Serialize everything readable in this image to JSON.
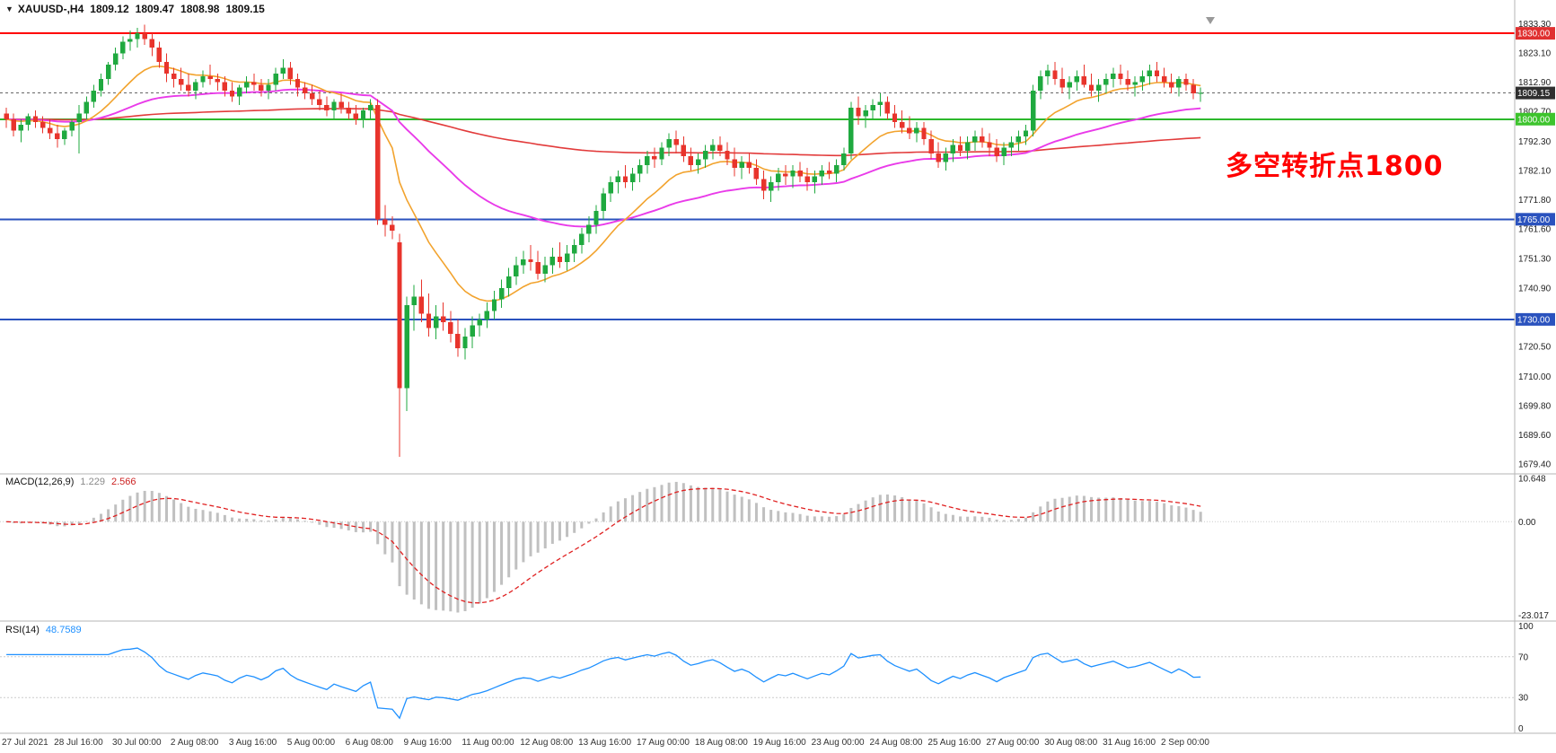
{
  "window": {
    "title_arrow": "▼",
    "symbol_period": "XAUUSD-,H4",
    "ohlc": {
      "open": "1809.12",
      "high": "1809.47",
      "low": "1808.98",
      "close": "1809.15"
    }
  },
  "annotation": {
    "text": "多空转折点1800",
    "color": "#FF0000"
  },
  "chart_data": {
    "type": "candlestick",
    "symbol": "XAUUSD-",
    "timeframe": "H4",
    "title": "XAUUSD-,H4 1809.12 1809.47 1808.98 1809.15",
    "scale": {
      "price_top": 1836,
      "price_bottom": 1676
    },
    "colors": {
      "up": "#1FA93F",
      "down": "#E8342C"
    },
    "current_price": 1809.15,
    "current_price_label": "1809.15",
    "price_axis": {
      "labels": [
        "1833.30",
        "1823.10",
        "1812.90",
        "1802.70",
        "1792.30",
        "1782.10",
        "1771.80",
        "1761.60",
        "1751.30",
        "1740.90",
        "1720.50",
        "1710.00",
        "1699.80",
        "1689.60",
        "1679.40"
      ]
    },
    "hlines": [
      {
        "price": 1830,
        "label": "1830.00",
        "color": "#FF0000",
        "badge_bg": "#E03030",
        "badge_fg": "#FFFFFF",
        "width": 2
      },
      {
        "price": 1800,
        "label": "1800.00",
        "color": "#2DB82D",
        "badge_bg": "#3DC42D",
        "badge_fg": "#FFFFFF",
        "width": 2
      },
      {
        "price": 1765,
        "label": "1765.00",
        "color": "#2A52BE",
        "badge_bg": "#2A52BE",
        "badge_fg": "#FFFFFF",
        "width": 2
      },
      {
        "price": 1730,
        "label": "1730.00",
        "color": "#2A52BE",
        "badge_bg": "#2A52BE",
        "badge_fg": "#FFFFFF",
        "width": 2
      }
    ],
    "moving_averages": [
      {
        "name": "fast-ma",
        "period": 13,
        "color": "#F2A32E",
        "width": 1.6
      },
      {
        "name": "mid-ma",
        "period": 48,
        "color": "#E93BE9",
        "width": 1.9
      },
      {
        "name": "slow-ma",
        "period": 220,
        "color": "#E23B3B",
        "width": 1.6
      }
    ],
    "macd": {
      "label": "MACD(12,26,9)",
      "value_main": "1.229",
      "value_signal": "2.566",
      "fast": 12,
      "slow": 26,
      "signal_period": 9,
      "histogram_color": "#C0C0C0",
      "signal_color": "#E02020",
      "axis": [
        "10.648",
        "0.00",
        "-23.017"
      ],
      "range": [
        -24.5,
        11.8
      ]
    },
    "rsi": {
      "label": "RSI(14)",
      "value": "48.7589",
      "period": 14,
      "color": "#1E90FF",
      "levels": [
        30,
        70
      ],
      "axis": [
        "100",
        "70",
        "30",
        "0"
      ]
    },
    "time_axis": {
      "labels": [
        {
          "index": 0,
          "text": "27 Jul 2021"
        },
        {
          "index": 10,
          "text": "28 Jul 16:00"
        },
        {
          "index": 18,
          "text": "30 Jul 00:00"
        },
        {
          "index": 26,
          "text": "2 Aug 08:00"
        },
        {
          "index": 34,
          "text": "3 Aug 16:00"
        },
        {
          "index": 42,
          "text": "5 Aug 00:00"
        },
        {
          "index": 50,
          "text": "6 Aug 08:00"
        },
        {
          "index": 58,
          "text": "9 Aug 16:00"
        },
        {
          "index": 66,
          "text": "11 Aug 00:00"
        },
        {
          "index": 74,
          "text": "12 Aug 08:00"
        },
        {
          "index": 82,
          "text": "13 Aug 16:00"
        },
        {
          "index": 90,
          "text": "17 Aug 00:00"
        },
        {
          "index": 98,
          "text": "18 Aug 08:00"
        },
        {
          "index": 106,
          "text": "19 Aug 16:00"
        },
        {
          "index": 114,
          "text": "23 Aug 00:00"
        },
        {
          "index": 122,
          "text": "24 Aug 08:00"
        },
        {
          "index": 130,
          "text": "25 Aug 16:00"
        },
        {
          "index": 138,
          "text": "27 Aug 00:00"
        },
        {
          "index": 146,
          "text": "30 Aug 08:00"
        },
        {
          "index": 154,
          "text": "31 Aug 16:00"
        },
        {
          "index": 162,
          "text": "2 Sep 00:00"
        }
      ]
    },
    "candles": [
      [
        1802,
        1804,
        1797,
        1800
      ],
      [
        1800,
        1802,
        1794,
        1796
      ],
      [
        1796,
        1800,
        1792,
        1798
      ],
      [
        1798,
        1802,
        1796,
        1801
      ],
      [
        1801,
        1803,
        1797,
        1799
      ],
      [
        1799,
        1801,
        1795,
        1797
      ],
      [
        1797,
        1800,
        1793,
        1795
      ],
      [
        1795,
        1798,
        1790,
        1793
      ],
      [
        1793,
        1797,
        1791,
        1796
      ],
      [
        1796,
        1800,
        1794,
        1799
      ],
      [
        1799,
        1805,
        1788,
        1802
      ],
      [
        1802,
        1808,
        1800,
        1806
      ],
      [
        1806,
        1812,
        1804,
        1810
      ],
      [
        1810,
        1816,
        1808,
        1814
      ],
      [
        1814,
        1820,
        1812,
        1819
      ],
      [
        1819,
        1825,
        1817,
        1823
      ],
      [
        1823,
        1829,
        1821,
        1827
      ],
      [
        1827,
        1831,
        1824,
        1828
      ],
      [
        1828,
        1832,
        1825,
        1830
      ],
      [
        1830,
        1833,
        1826,
        1828
      ],
      [
        1828,
        1830,
        1822,
        1825
      ],
      [
        1825,
        1827,
        1818,
        1820
      ],
      [
        1820,
        1823,
        1813,
        1816
      ],
      [
        1816,
        1818,
        1811,
        1814
      ],
      [
        1814,
        1818,
        1810,
        1812
      ],
      [
        1812,
        1816,
        1808,
        1810
      ],
      [
        1810,
        1814,
        1807,
        1813
      ],
      [
        1813,
        1817,
        1811,
        1815
      ],
      [
        1815,
        1819,
        1812,
        1814
      ],
      [
        1814,
        1816,
        1810,
        1813
      ],
      [
        1813,
        1815,
        1808,
        1810
      ],
      [
        1810,
        1813,
        1806,
        1808
      ],
      [
        1808,
        1812,
        1805,
        1811
      ],
      [
        1811,
        1815,
        1809,
        1813
      ],
      [
        1813,
        1816,
        1810,
        1812
      ],
      [
        1812,
        1814,
        1808,
        1810
      ],
      [
        1810,
        1814,
        1807,
        1812
      ],
      [
        1812,
        1818,
        1810,
        1816
      ],
      [
        1816,
        1821,
        1814,
        1818
      ],
      [
        1818,
        1820,
        1812,
        1814
      ],
      [
        1814,
        1816,
        1808,
        1811
      ],
      [
        1811,
        1813,
        1807,
        1809
      ],
      [
        1809,
        1812,
        1805,
        1807
      ],
      [
        1807,
        1810,
        1803,
        1805
      ],
      [
        1805,
        1808,
        1801,
        1803
      ],
      [
        1803,
        1807,
        1800,
        1806
      ],
      [
        1806,
        1809,
        1802,
        1804
      ],
      [
        1804,
        1806,
        1800,
        1802
      ],
      [
        1802,
        1805,
        1798,
        1800
      ],
      [
        1800,
        1804,
        1797,
        1803
      ],
      [
        1803,
        1807,
        1800,
        1805
      ],
      [
        1805,
        1807,
        1763,
        1765
      ],
      [
        1765,
        1770,
        1759,
        1763
      ],
      [
        1763,
        1766,
        1758,
        1761
      ],
      [
        1757,
        1760,
        1682,
        1706
      ],
      [
        1706,
        1738,
        1698,
        1735
      ],
      [
        1735,
        1742,
        1726,
        1738
      ],
      [
        1738,
        1744,
        1729,
        1732
      ],
      [
        1732,
        1739,
        1724,
        1727
      ],
      [
        1727,
        1735,
        1723,
        1731
      ],
      [
        1731,
        1736,
        1726,
        1729
      ],
      [
        1729,
        1733,
        1722,
        1725
      ],
      [
        1725,
        1730,
        1717,
        1720
      ],
      [
        1720,
        1727,
        1716,
        1724
      ],
      [
        1724,
        1731,
        1720,
        1728
      ],
      [
        1728,
        1732,
        1724,
        1730
      ],
      [
        1730,
        1736,
        1727,
        1733
      ],
      [
        1733,
        1740,
        1730,
        1737
      ],
      [
        1737,
        1744,
        1734,
        1741
      ],
      [
        1741,
        1748,
        1738,
        1745
      ],
      [
        1745,
        1752,
        1742,
        1749
      ],
      [
        1749,
        1754,
        1746,
        1751
      ],
      [
        1751,
        1756,
        1747,
        1750
      ],
      [
        1750,
        1754,
        1744,
        1746
      ],
      [
        1746,
        1752,
        1743,
        1749
      ],
      [
        1749,
        1755,
        1746,
        1752
      ],
      [
        1752,
        1757,
        1748,
        1750
      ],
      [
        1750,
        1756,
        1747,
        1753
      ],
      [
        1753,
        1758,
        1750,
        1756
      ],
      [
        1756,
        1762,
        1753,
        1760
      ],
      [
        1760,
        1766,
        1757,
        1763
      ],
      [
        1763,
        1770,
        1760,
        1768
      ],
      [
        1768,
        1776,
        1765,
        1774
      ],
      [
        1774,
        1780,
        1771,
        1778
      ],
      [
        1778,
        1782,
        1774,
        1780
      ],
      [
        1780,
        1784,
        1776,
        1778
      ],
      [
        1778,
        1783,
        1775,
        1781
      ],
      [
        1781,
        1786,
        1778,
        1784
      ],
      [
        1784,
        1789,
        1781,
        1787
      ],
      [
        1787,
        1790,
        1783,
        1786
      ],
      [
        1786,
        1792,
        1784,
        1790
      ],
      [
        1790,
        1795,
        1787,
        1793
      ],
      [
        1793,
        1796,
        1788,
        1791
      ],
      [
        1791,
        1794,
        1785,
        1787
      ],
      [
        1787,
        1790,
        1782,
        1784
      ],
      [
        1784,
        1788,
        1781,
        1786
      ],
      [
        1786,
        1791,
        1783,
        1789
      ],
      [
        1789,
        1793,
        1786,
        1791
      ],
      [
        1791,
        1794,
        1787,
        1789
      ],
      [
        1789,
        1792,
        1784,
        1786
      ],
      [
        1786,
        1790,
        1780,
        1783
      ],
      [
        1783,
        1787,
        1779,
        1785
      ],
      [
        1785,
        1788,
        1781,
        1783
      ],
      [
        1783,
        1786,
        1777,
        1779
      ],
      [
        1779,
        1782,
        1772,
        1775
      ],
      [
        1775,
        1780,
        1771,
        1778
      ],
      [
        1778,
        1783,
        1775,
        1781
      ],
      [
        1781,
        1784,
        1777,
        1780
      ],
      [
        1780,
        1784,
        1776,
        1782
      ],
      [
        1782,
        1785,
        1778,
        1780
      ],
      [
        1780,
        1783,
        1775,
        1778
      ],
      [
        1778,
        1782,
        1774,
        1780
      ],
      [
        1780,
        1784,
        1777,
        1782
      ],
      [
        1782,
        1785,
        1779,
        1781
      ],
      [
        1781,
        1786,
        1778,
        1784
      ],
      [
        1784,
        1790,
        1782,
        1788
      ],
      [
        1788,
        1806,
        1786,
        1804
      ],
      [
        1804,
        1808,
        1798,
        1801
      ],
      [
        1801,
        1805,
        1797,
        1803
      ],
      [
        1803,
        1807,
        1800,
        1805
      ],
      [
        1805,
        1809,
        1801,
        1806
      ],
      [
        1806,
        1808,
        1800,
        1802
      ],
      [
        1802,
        1805,
        1797,
        1799
      ],
      [
        1799,
        1803,
        1795,
        1797
      ],
      [
        1797,
        1801,
        1793,
        1795
      ],
      [
        1795,
        1799,
        1792,
        1797
      ],
      [
        1797,
        1799,
        1791,
        1793
      ],
      [
        1793,
        1796,
        1786,
        1788
      ],
      [
        1788,
        1792,
        1783,
        1785
      ],
      [
        1785,
        1790,
        1782,
        1788
      ],
      [
        1788,
        1793,
        1785,
        1791
      ],
      [
        1791,
        1794,
        1787,
        1789
      ],
      [
        1789,
        1794,
        1786,
        1792
      ],
      [
        1792,
        1796,
        1789,
        1794
      ],
      [
        1794,
        1797,
        1790,
        1792
      ],
      [
        1792,
        1795,
        1787,
        1790
      ],
      [
        1790,
        1793,
        1785,
        1787
      ],
      [
        1787,
        1792,
        1784,
        1790
      ],
      [
        1790,
        1794,
        1787,
        1792
      ],
      [
        1792,
        1796,
        1789,
        1794
      ],
      [
        1794,
        1798,
        1791,
        1796
      ],
      [
        1796,
        1812,
        1794,
        1810
      ],
      [
        1810,
        1817,
        1807,
        1815
      ],
      [
        1815,
        1819,
        1812,
        1817
      ],
      [
        1817,
        1820,
        1812,
        1814
      ],
      [
        1814,
        1818,
        1809,
        1811
      ],
      [
        1811,
        1815,
        1807,
        1813
      ],
      [
        1813,
        1817,
        1810,
        1815
      ],
      [
        1815,
        1819,
        1811,
        1812
      ],
      [
        1812,
        1816,
        1808,
        1810
      ],
      [
        1810,
        1814,
        1806,
        1812
      ],
      [
        1812,
        1816,
        1809,
        1814
      ],
      [
        1814,
        1818,
        1811,
        1816
      ],
      [
        1816,
        1819,
        1812,
        1814
      ],
      [
        1814,
        1817,
        1810,
        1812
      ],
      [
        1812,
        1815,
        1808,
        1813
      ],
      [
        1813,
        1817,
        1810,
        1815
      ],
      [
        1815,
        1819,
        1812,
        1817
      ],
      [
        1817,
        1820,
        1813,
        1815
      ],
      [
        1815,
        1818,
        1811,
        1813
      ],
      [
        1813,
        1816,
        1809,
        1811
      ],
      [
        1811,
        1815,
        1808,
        1814
      ],
      [
        1814,
        1816,
        1810,
        1812
      ],
      [
        1812,
        1814,
        1807,
        1809
      ],
      [
        1809,
        1811,
        1806,
        1809.15
      ]
    ]
  }
}
